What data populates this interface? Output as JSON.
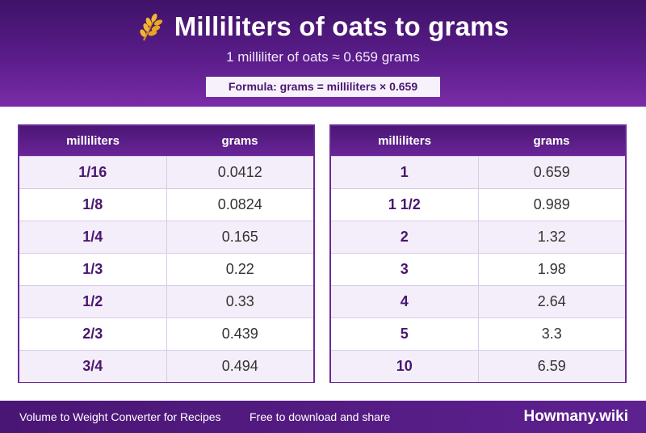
{
  "header": {
    "title": "Milliliters of oats to grams",
    "icon": "wheat-icon",
    "subtitle": "1 milliliter of oats ≈ 0.659 grams",
    "formula": "Formula: grams = milliliters × 0.659"
  },
  "tables": {
    "left": {
      "col1": "milliliters",
      "col2": "grams",
      "rows": [
        {
          "ml": "1/16",
          "g": "0.0412"
        },
        {
          "ml": "1/8",
          "g": "0.0824"
        },
        {
          "ml": "1/4",
          "g": "0.165"
        },
        {
          "ml": "1/3",
          "g": "0.22"
        },
        {
          "ml": "1/2",
          "g": "0.33"
        },
        {
          "ml": "2/3",
          "g": "0.439"
        },
        {
          "ml": "3/4",
          "g": "0.494"
        }
      ]
    },
    "right": {
      "col1": "milliliters",
      "col2": "grams",
      "rows": [
        {
          "ml": "1",
          "g": "0.659"
        },
        {
          "ml": "1 1/2",
          "g": "0.989"
        },
        {
          "ml": "2",
          "g": "1.32"
        },
        {
          "ml": "3",
          "g": "1.98"
        },
        {
          "ml": "4",
          "g": "2.64"
        },
        {
          "ml": "5",
          "g": "3.3"
        },
        {
          "ml": "10",
          "g": "6.59"
        }
      ]
    }
  },
  "footer": {
    "left_text": "Volume to Weight Converter for Recipes",
    "mid_text": "Free to download and share",
    "brand": "Howmany.wiki"
  },
  "colors": {
    "accent": "#5a1d8a",
    "text_accent": "#4a176f"
  }
}
